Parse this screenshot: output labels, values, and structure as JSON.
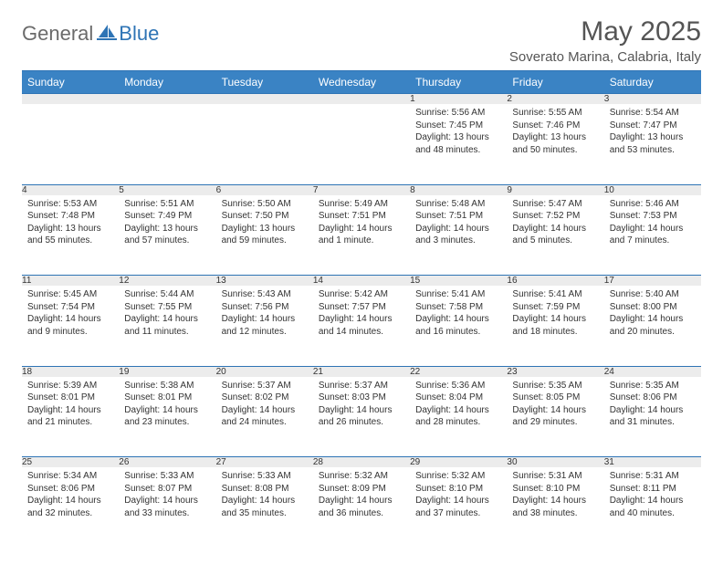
{
  "brand": {
    "general": "General",
    "blue": "Blue"
  },
  "title": "May 2025",
  "location": "Soverato Marina, Calabria, Italy",
  "colors": {
    "header_bg": "#3a83c4",
    "accent": "#2e74b5",
    "daynum_bg": "#ececec",
    "text": "#333333",
    "muted": "#555555"
  },
  "weekdays": [
    "Sunday",
    "Monday",
    "Tuesday",
    "Wednesday",
    "Thursday",
    "Friday",
    "Saturday"
  ],
  "weeks": [
    [
      null,
      null,
      null,
      null,
      {
        "n": "1",
        "sr": "5:56 AM",
        "ss": "7:45 PM",
        "dl": "13 hours and 48 minutes."
      },
      {
        "n": "2",
        "sr": "5:55 AM",
        "ss": "7:46 PM",
        "dl": "13 hours and 50 minutes."
      },
      {
        "n": "3",
        "sr": "5:54 AM",
        "ss": "7:47 PM",
        "dl": "13 hours and 53 minutes."
      }
    ],
    [
      {
        "n": "4",
        "sr": "5:53 AM",
        "ss": "7:48 PM",
        "dl": "13 hours and 55 minutes."
      },
      {
        "n": "5",
        "sr": "5:51 AM",
        "ss": "7:49 PM",
        "dl": "13 hours and 57 minutes."
      },
      {
        "n": "6",
        "sr": "5:50 AM",
        "ss": "7:50 PM",
        "dl": "13 hours and 59 minutes."
      },
      {
        "n": "7",
        "sr": "5:49 AM",
        "ss": "7:51 PM",
        "dl": "14 hours and 1 minute."
      },
      {
        "n": "8",
        "sr": "5:48 AM",
        "ss": "7:51 PM",
        "dl": "14 hours and 3 minutes."
      },
      {
        "n": "9",
        "sr": "5:47 AM",
        "ss": "7:52 PM",
        "dl": "14 hours and 5 minutes."
      },
      {
        "n": "10",
        "sr": "5:46 AM",
        "ss": "7:53 PM",
        "dl": "14 hours and 7 minutes."
      }
    ],
    [
      {
        "n": "11",
        "sr": "5:45 AM",
        "ss": "7:54 PM",
        "dl": "14 hours and 9 minutes."
      },
      {
        "n": "12",
        "sr": "5:44 AM",
        "ss": "7:55 PM",
        "dl": "14 hours and 11 minutes."
      },
      {
        "n": "13",
        "sr": "5:43 AM",
        "ss": "7:56 PM",
        "dl": "14 hours and 12 minutes."
      },
      {
        "n": "14",
        "sr": "5:42 AM",
        "ss": "7:57 PM",
        "dl": "14 hours and 14 minutes."
      },
      {
        "n": "15",
        "sr": "5:41 AM",
        "ss": "7:58 PM",
        "dl": "14 hours and 16 minutes."
      },
      {
        "n": "16",
        "sr": "5:41 AM",
        "ss": "7:59 PM",
        "dl": "14 hours and 18 minutes."
      },
      {
        "n": "17",
        "sr": "5:40 AM",
        "ss": "8:00 PM",
        "dl": "14 hours and 20 minutes."
      }
    ],
    [
      {
        "n": "18",
        "sr": "5:39 AM",
        "ss": "8:01 PM",
        "dl": "14 hours and 21 minutes."
      },
      {
        "n": "19",
        "sr": "5:38 AM",
        "ss": "8:01 PM",
        "dl": "14 hours and 23 minutes."
      },
      {
        "n": "20",
        "sr": "5:37 AM",
        "ss": "8:02 PM",
        "dl": "14 hours and 24 minutes."
      },
      {
        "n": "21",
        "sr": "5:37 AM",
        "ss": "8:03 PM",
        "dl": "14 hours and 26 minutes."
      },
      {
        "n": "22",
        "sr": "5:36 AM",
        "ss": "8:04 PM",
        "dl": "14 hours and 28 minutes."
      },
      {
        "n": "23",
        "sr": "5:35 AM",
        "ss": "8:05 PM",
        "dl": "14 hours and 29 minutes."
      },
      {
        "n": "24",
        "sr": "5:35 AM",
        "ss": "8:06 PM",
        "dl": "14 hours and 31 minutes."
      }
    ],
    [
      {
        "n": "25",
        "sr": "5:34 AM",
        "ss": "8:06 PM",
        "dl": "14 hours and 32 minutes."
      },
      {
        "n": "26",
        "sr": "5:33 AM",
        "ss": "8:07 PM",
        "dl": "14 hours and 33 minutes."
      },
      {
        "n": "27",
        "sr": "5:33 AM",
        "ss": "8:08 PM",
        "dl": "14 hours and 35 minutes."
      },
      {
        "n": "28",
        "sr": "5:32 AM",
        "ss": "8:09 PM",
        "dl": "14 hours and 36 minutes."
      },
      {
        "n": "29",
        "sr": "5:32 AM",
        "ss": "8:10 PM",
        "dl": "14 hours and 37 minutes."
      },
      {
        "n": "30",
        "sr": "5:31 AM",
        "ss": "8:10 PM",
        "dl": "14 hours and 38 minutes."
      },
      {
        "n": "31",
        "sr": "5:31 AM",
        "ss": "8:11 PM",
        "dl": "14 hours and 40 minutes."
      }
    ]
  ],
  "labels": {
    "sunrise": "Sunrise: ",
    "sunset": "Sunset: ",
    "daylight": "Daylight: "
  }
}
